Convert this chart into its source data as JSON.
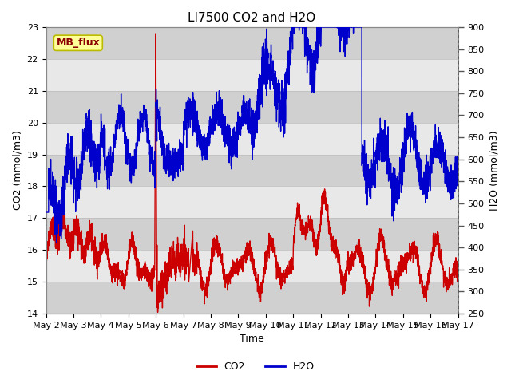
{
  "title": "LI7500 CO2 and H2O",
  "xlabel": "Time",
  "ylabel_left": "CO2 (mmol/m3)",
  "ylabel_right": "H2O (mmol/m3)",
  "co2_color": "#cc0000",
  "h2o_color": "#0000cc",
  "ylim_left": [
    14.0,
    23.0
  ],
  "ylim_right": [
    250,
    900
  ],
  "yticks_left": [
    14.0,
    15.0,
    16.0,
    17.0,
    18.0,
    19.0,
    20.0,
    21.0,
    22.0,
    23.0
  ],
  "yticks_right": [
    250,
    300,
    350,
    400,
    450,
    500,
    550,
    600,
    650,
    700,
    750,
    800,
    850,
    900
  ],
  "annotation_text": "MB_flux",
  "bg_light": "#e8e8e8",
  "bg_dark": "#d0d0d0",
  "linewidth": 1.0,
  "title_fontsize": 11,
  "axis_label_fontsize": 9,
  "tick_fontsize": 8,
  "legend_fontsize": 9,
  "x_tick_days": [
    2,
    3,
    4,
    5,
    6,
    7,
    8,
    9,
    10,
    11,
    12,
    13,
    14,
    15,
    16,
    17
  ]
}
